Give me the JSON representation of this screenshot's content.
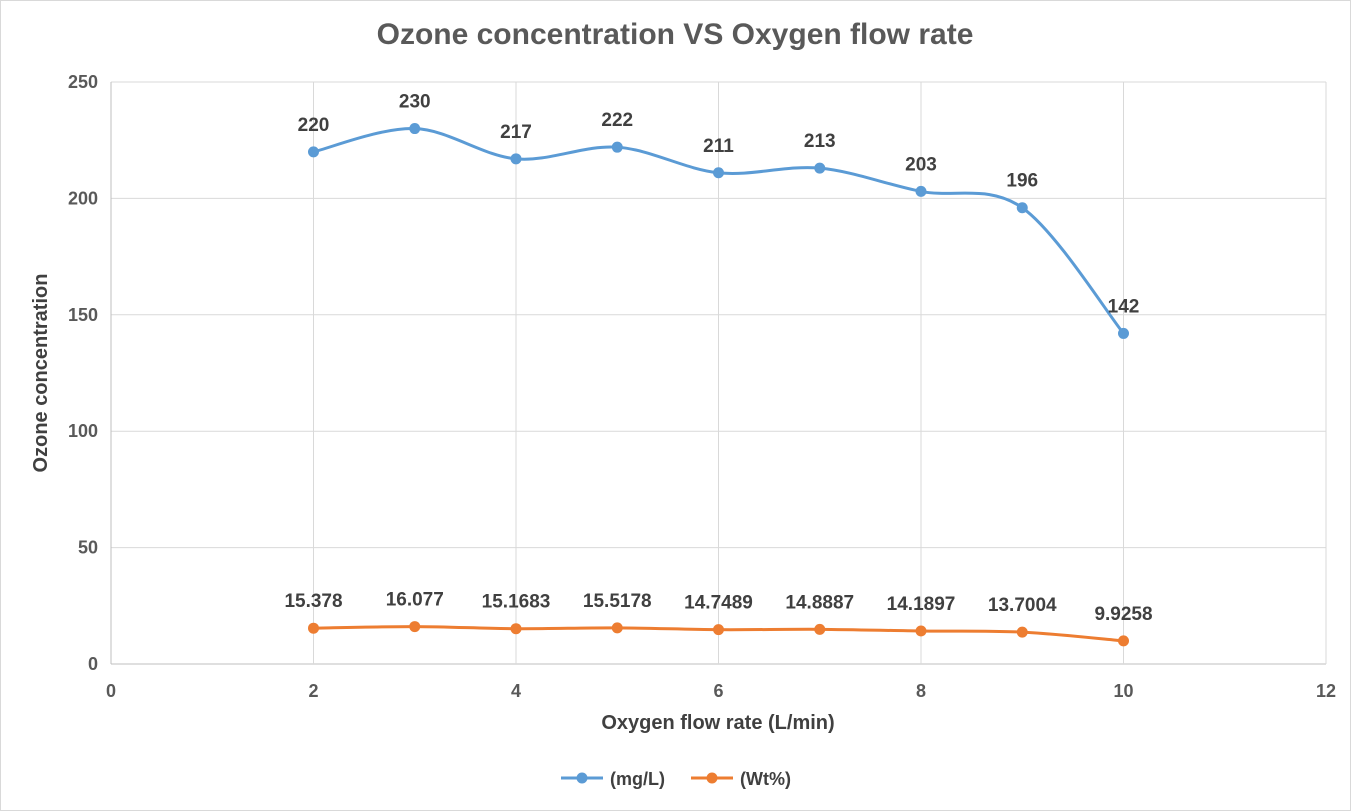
{
  "chart_data": {
    "type": "line",
    "title": "Ozone concentration VS Oxygen flow rate",
    "xlabel": "Oxygen flow rate (L/min)",
    "ylabel": "Ozone concentration",
    "xlim": [
      0,
      12
    ],
    "ylim": [
      0,
      250
    ],
    "x_ticks": [
      0,
      2,
      4,
      6,
      8,
      10,
      12
    ],
    "y_ticks": [
      0,
      50,
      100,
      150,
      200,
      250
    ],
    "grid": true,
    "legend_position": "bottom",
    "x": [
      2,
      3,
      4,
      5,
      6,
      7,
      8,
      9,
      10
    ],
    "series": [
      {
        "name": "(mg/L)",
        "color": "#5b9bd5",
        "values": [
          220,
          230,
          217,
          222,
          211,
          213,
          203,
          196,
          142
        ],
        "labels": [
          "220",
          "230",
          "217",
          "222",
          "211",
          "213",
          "203",
          "196",
          "142"
        ]
      },
      {
        "name": "(Wt%)",
        "color": "#ed7d31",
        "values": [
          15.378,
          16.077,
          15.1683,
          15.5178,
          14.7489,
          14.8887,
          14.1897,
          13.7004,
          9.9258
        ],
        "labels": [
          "15.378",
          "16.077",
          "15.1683",
          "15.5178",
          "14.7489",
          "14.8887",
          "14.1897",
          "13.7004",
          "9.9258"
        ]
      }
    ]
  }
}
